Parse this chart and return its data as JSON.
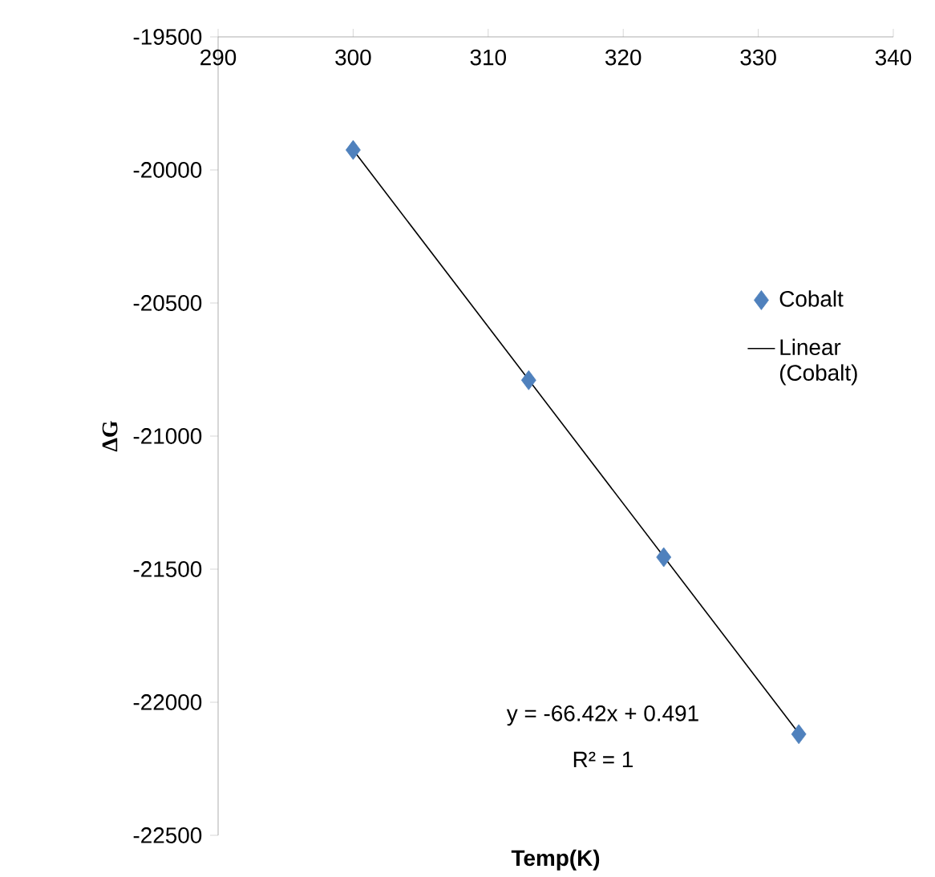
{
  "chart_data": {
    "type": "scatter",
    "xlabel": "Temp(K)",
    "ylabel": "ΔG",
    "series": [
      {
        "name": "Cobalt",
        "color": "#4f81bd",
        "marker": "diamond",
        "x": [
          300,
          313,
          323,
          333
        ],
        "values": [
          -19925,
          -20790,
          -21455,
          -22120
        ]
      },
      {
        "name": "Linear (Cobalt)",
        "type": "line",
        "color": "#000000",
        "marker": "none",
        "x": [
          300,
          333
        ],
        "values": [
          -19925,
          -22117
        ]
      }
    ],
    "xlim": [
      290,
      340
    ],
    "xticks": [
      290,
      300,
      310,
      320,
      330,
      340
    ],
    "ylim": [
      -22500,
      -19500
    ],
    "yticks": [
      -22500,
      -22000,
      -21500,
      -21000,
      -20500,
      -20000,
      -19500
    ],
    "annotations": [
      "y = -66.42x + 0.491",
      "R² = 1"
    ],
    "grid": false,
    "legend": "right"
  }
}
